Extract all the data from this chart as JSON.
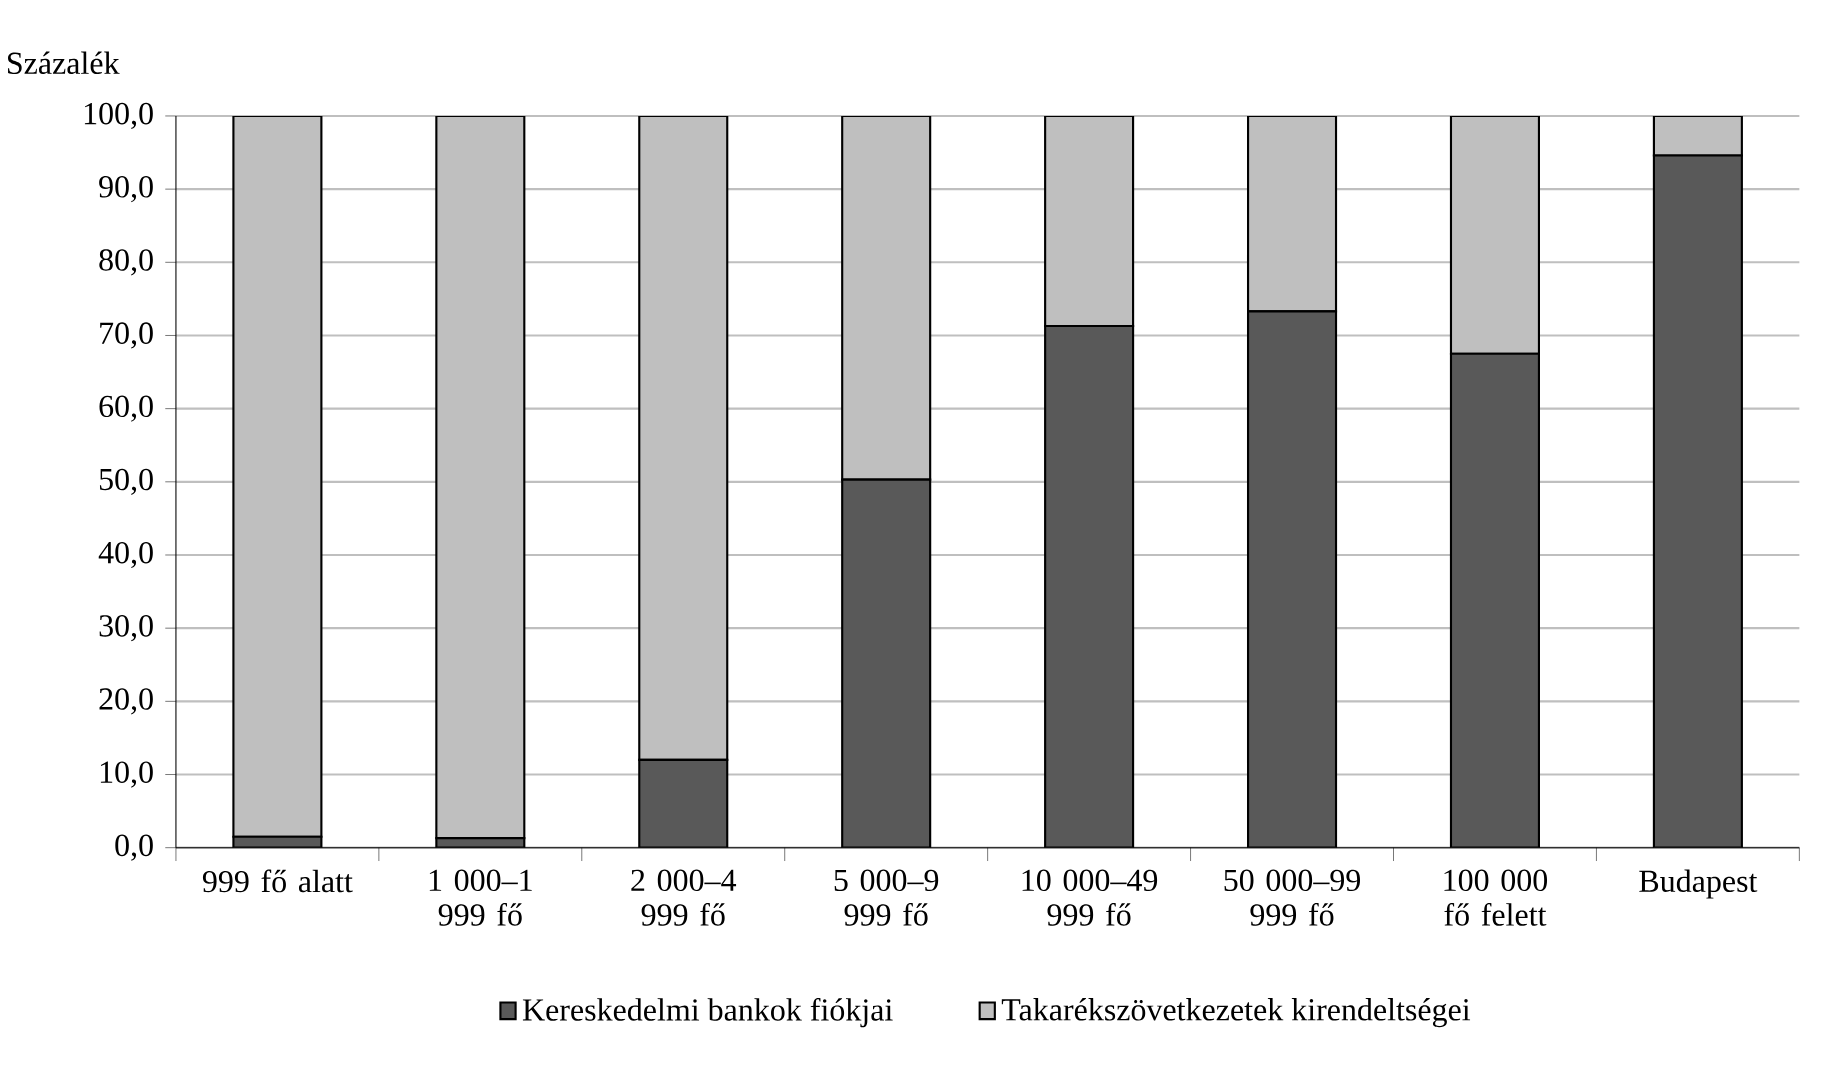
{
  "chart_data": {
    "type": "bar",
    "stacked": true,
    "ylabel": "Százalék",
    "categories": [
      "999 fő alatt",
      "1 000–1 999 fő",
      "2 000–4 999 fő",
      "5 000–9 999 fő",
      "10 000–49 999 fő",
      "50 000–99 999 fő",
      "100 000 fő felett",
      "Budapest"
    ],
    "series": [
      {
        "name": "Kereskedelmi bankok fiókjai",
        "color": "#595959",
        "values": [
          1.5,
          1.3,
          12.0,
          50.3,
          71.3,
          73.3,
          67.5,
          94.6
        ]
      },
      {
        "name": "Takarékszövetkezetek kirendeltségei",
        "color": "#bfbfbf",
        "values": [
          98.5,
          98.7,
          88.0,
          49.7,
          28.7,
          26.7,
          32.5,
          5.4
        ]
      }
    ],
    "ylim": [
      0,
      100
    ],
    "yticks": [
      {
        "value": 0,
        "label": "0,0"
      },
      {
        "value": 10,
        "label": "10,0"
      },
      {
        "value": 20,
        "label": "20,0"
      },
      {
        "value": 30,
        "label": "30,0"
      },
      {
        "value": 40,
        "label": "40,0"
      },
      {
        "value": 50,
        "label": "50,0"
      },
      {
        "value": 60,
        "label": "60,0"
      },
      {
        "value": 70,
        "label": "70,0"
      },
      {
        "value": 80,
        "label": "80,0"
      },
      {
        "value": 90,
        "label": "90,0"
      },
      {
        "value": 100,
        "label": "100,0"
      }
    ],
    "grid": "y",
    "legend": "bottom"
  }
}
